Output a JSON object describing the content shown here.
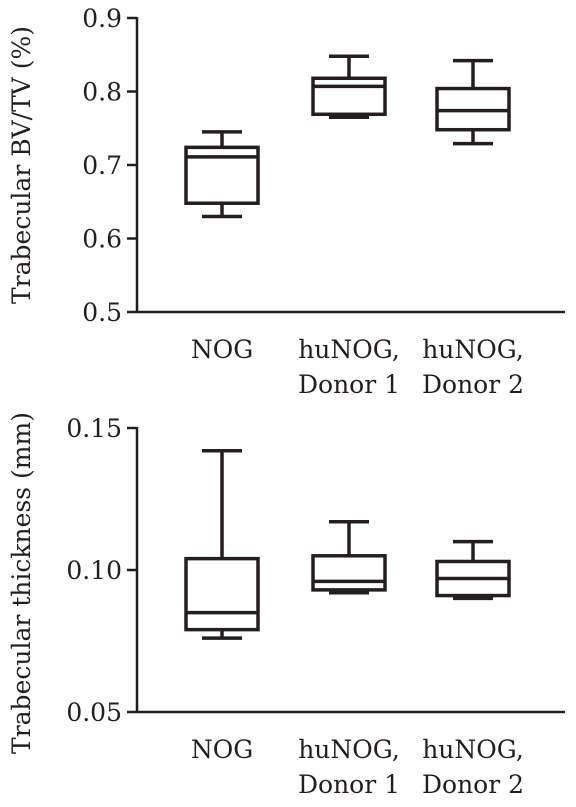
{
  "chart_data": [
    {
      "type": "box",
      "ylabel": "Trabecular BV/TV (%)",
      "ylim": [
        0.5,
        0.9
      ],
      "yticks": [
        "0.5",
        "0.6",
        "0.7",
        "0.8",
        "0.9"
      ],
      "categories": [
        {
          "line1": "NOG",
          "line2": ""
        },
        {
          "line1": "huNOG,",
          "line2": "Donor 1"
        },
        {
          "line1": "huNOG,",
          "line2": "Donor 2"
        }
      ],
      "boxes": [
        {
          "min": 0.63,
          "q1": 0.648,
          "median": 0.711,
          "q3": 0.724,
          "max": 0.745
        },
        {
          "min": 0.765,
          "q1": 0.769,
          "median": 0.807,
          "q3": 0.818,
          "max": 0.848
        },
        {
          "min": 0.729,
          "q1": 0.748,
          "median": 0.774,
          "q3": 0.804,
          "max": 0.842
        }
      ]
    },
    {
      "type": "box",
      "ylabel": "Trabecular thickness (mm)",
      "ylim": [
        0.05,
        0.15
      ],
      "yticks": [
        "0.05",
        "0.10",
        "0.15"
      ],
      "categories": [
        {
          "line1": "NOG",
          "line2": ""
        },
        {
          "line1": "huNOG,",
          "line2": "Donor 1"
        },
        {
          "line1": "huNOG,",
          "line2": "Donor 2"
        }
      ],
      "boxes": [
        {
          "min": 0.076,
          "q1": 0.079,
          "median": 0.085,
          "q3": 0.104,
          "max": 0.142
        },
        {
          "min": 0.092,
          "q1": 0.093,
          "median": 0.096,
          "q3": 0.105,
          "max": 0.117
        },
        {
          "min": 0.09,
          "q1": 0.091,
          "median": 0.097,
          "q3": 0.103,
          "max": 0.11
        }
      ]
    }
  ]
}
